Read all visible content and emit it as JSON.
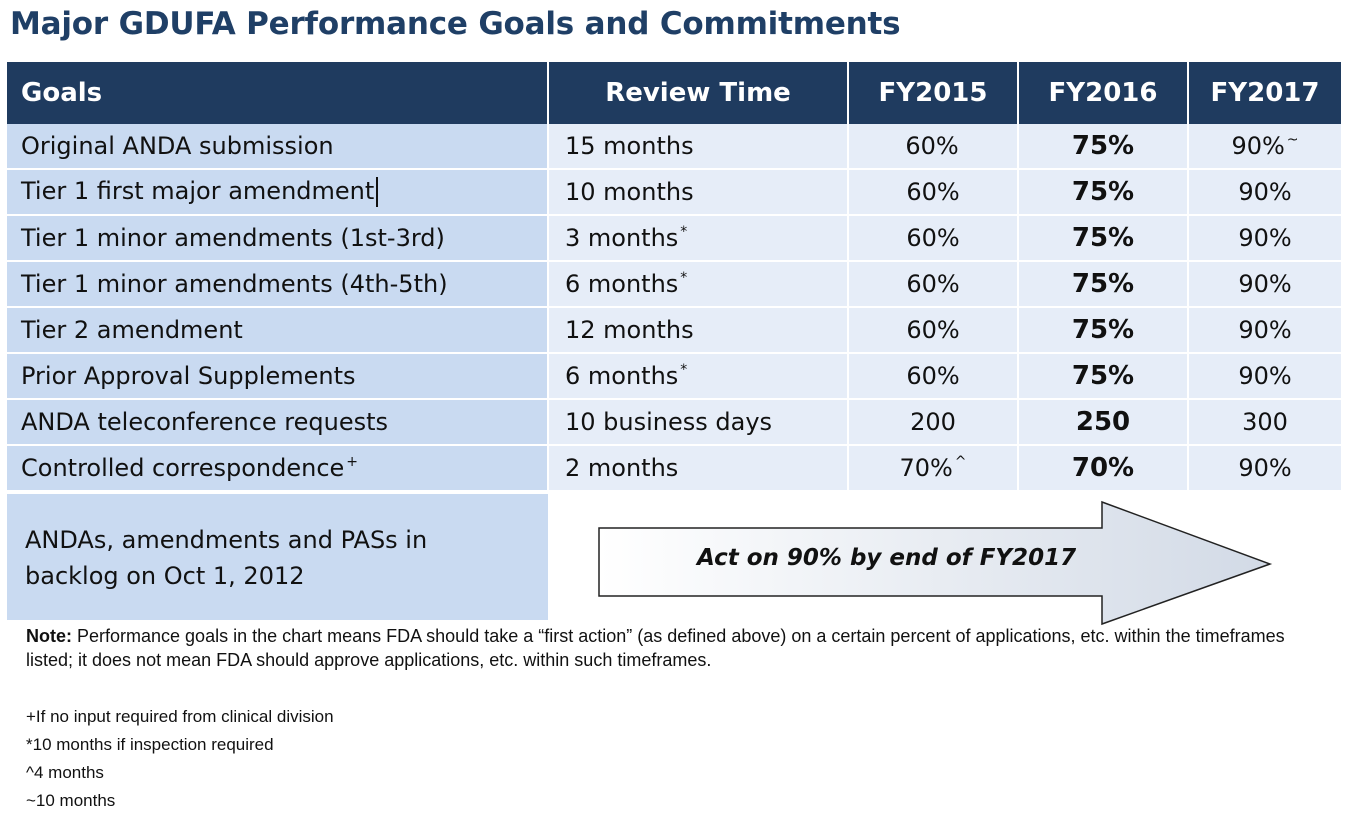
{
  "title": "Major GDUFA Performance Goals and Commitments",
  "table": {
    "headers": [
      "Goals",
      "Review Time",
      "FY2015",
      "FY2016",
      "FY2017"
    ],
    "rows": [
      {
        "goal": "Original ANDA submission",
        "goal_mark": "",
        "review": "15 months",
        "review_mark": "",
        "fy2015": "60%",
        "fy2015_mark": "",
        "fy2016": "75%",
        "fy2017": "90%",
        "fy2017_mark": "~"
      },
      {
        "goal": "Tier 1 first major amendment",
        "goal_mark": "",
        "review": "10 months",
        "review_mark": "",
        "fy2015": "60%",
        "fy2015_mark": "",
        "fy2016": "75%",
        "fy2017": "90%",
        "fy2017_mark": ""
      },
      {
        "goal": "Tier 1 minor amendments (1st-3rd)",
        "goal_mark": "",
        "review": "3 months",
        "review_mark": "*",
        "fy2015": "60%",
        "fy2015_mark": "",
        "fy2016": "75%",
        "fy2017": "90%",
        "fy2017_mark": ""
      },
      {
        "goal": "Tier 1 minor amendments (4th-5th)",
        "goal_mark": "",
        "review": "6 months",
        "review_mark": "*",
        "fy2015": "60%",
        "fy2015_mark": "",
        "fy2016": "75%",
        "fy2017": "90%",
        "fy2017_mark": ""
      },
      {
        "goal": "Tier 2 amendment",
        "goal_mark": "",
        "review": "12 months",
        "review_mark": "",
        "fy2015": "60%",
        "fy2015_mark": "",
        "fy2016": "75%",
        "fy2017": "90%",
        "fy2017_mark": ""
      },
      {
        "goal": "Prior Approval Supplements",
        "goal_mark": "",
        "review": "6 months",
        "review_mark": "*",
        "fy2015": "60%",
        "fy2015_mark": "",
        "fy2016": "75%",
        "fy2017": "90%",
        "fy2017_mark": ""
      },
      {
        "goal": "ANDA teleconference requests",
        "goal_mark": "",
        "review": "10 business days",
        "review_mark": "",
        "fy2015": "200",
        "fy2015_mark": "",
        "fy2016": "250",
        "fy2017": "300",
        "fy2017_mark": ""
      },
      {
        "goal": "Controlled correspondence",
        "goal_mark": "+",
        "review": "2 months",
        "review_mark": "",
        "fy2015": "70%",
        "fy2015_mark": "^",
        "fy2016": "70%",
        "fy2017": "90%",
        "fy2017_mark": ""
      }
    ]
  },
  "backlog": {
    "line1": "ANDAs, amendments and PASs in",
    "line2": "backlog on Oct 1, 2012"
  },
  "arrow_label": "Act on 90% by end of FY2017",
  "note": {
    "label": "Note:",
    "text": " Performance goals in the chart means FDA should take a “first action” (as defined above) on a certain percent of applications, etc. within the timeframes listed; it does not mean FDA should approve applications, etc. within such timeframes."
  },
  "footnotes": [
    "+If no input required from clinical division",
    "*10 months if inspection required",
    "^4 months",
    "~10 months"
  ]
}
